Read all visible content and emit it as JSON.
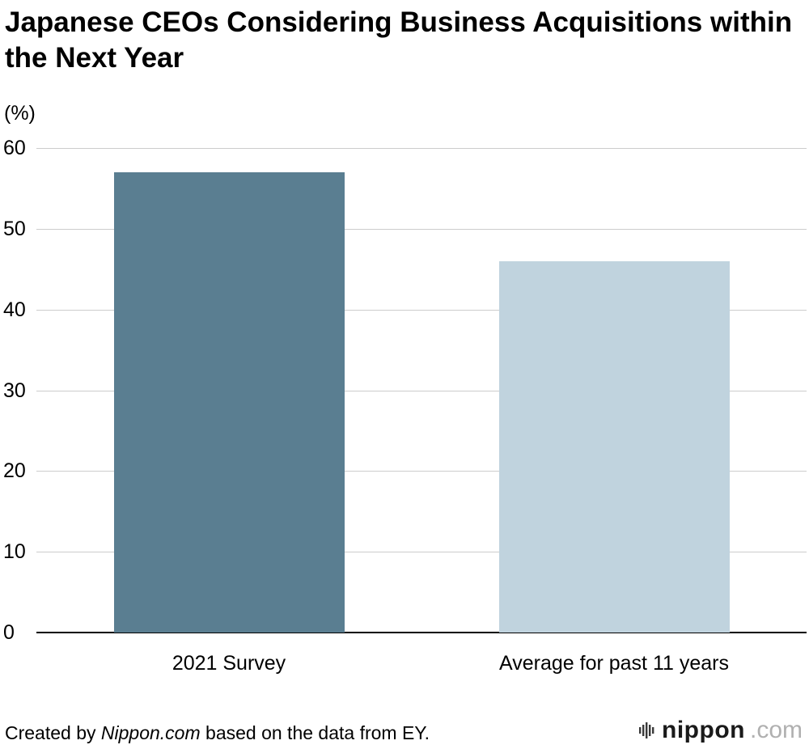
{
  "title": "Japanese CEOs Considering Business Acquisitions within the Next Year",
  "unit_label": "(%)",
  "footer": {
    "prefix": "Created by ",
    "brand": "Nippon.com",
    "suffix": " based on the data from EY."
  },
  "logo": {
    "name": "nippon",
    "suffix": ".com"
  },
  "chart_data": {
    "type": "bar",
    "title": "Japanese CEOs Considering Business Acquisitions within the Next Year",
    "categories": [
      "2021 Survey",
      "Average for past 11 years"
    ],
    "values": [
      57,
      46
    ],
    "colors": [
      "#5a7e91",
      "#c0d3de"
    ],
    "xlabel": "",
    "ylabel": "(%)",
    "ylim": [
      0,
      60
    ],
    "yticks": [
      0,
      10,
      20,
      30,
      40,
      50,
      60
    ],
    "grid": true,
    "legend": "none"
  }
}
